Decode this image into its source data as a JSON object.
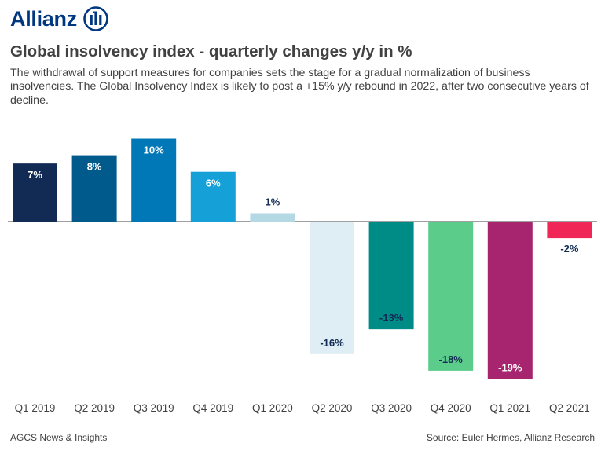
{
  "brand": {
    "name": "Allianz",
    "logo_icon": "allianz-eagle-icon",
    "color": "#003781"
  },
  "chart_data": {
    "type": "bar",
    "title": "Global insolvency index - quarterly changes y/y in %",
    "subtitle": "The withdrawal of support measures for companies sets the stage for a gradual normalization of business insolvencies. The Global Insolvency Index is likely to post a +15% y/y rebound in 2022, after two consecutive years of decline.",
    "categories": [
      "Q1 2019",
      "Q2 2019",
      "Q3 2019",
      "Q4 2019",
      "Q1 2020",
      "Q2 2020",
      "Q3 2020",
      "Q4 2020",
      "Q1 2021",
      "Q2 2021"
    ],
    "values": [
      7,
      8,
      10,
      6,
      1,
      -16,
      -13,
      -18,
      -19,
      -2
    ],
    "data_labels": [
      "7%",
      "8%",
      "10%",
      "6%",
      "1%",
      "-16%",
      "-13%",
      "-18%",
      "-19%",
      "-2%"
    ],
    "colors": [
      "#122b54",
      "#005a8c",
      "#0077b6",
      "#15a1d8",
      "#b4d9e4",
      "#deeef4",
      "#008c86",
      "#5ccc8a",
      "#a6256e",
      "#f02656"
    ],
    "label_colors": [
      "#ffffff",
      "#ffffff",
      "#ffffff",
      "#ffffff",
      "#122b54",
      "#122b54",
      "#122b54",
      "#122b54",
      "#ffffff",
      "#122b54"
    ],
    "ylim": [
      -20,
      11
    ],
    "grid": false
  },
  "footer": {
    "left": "AGCS News & Insights",
    "right": "Source: Euler Hermes, Allianz Research"
  }
}
